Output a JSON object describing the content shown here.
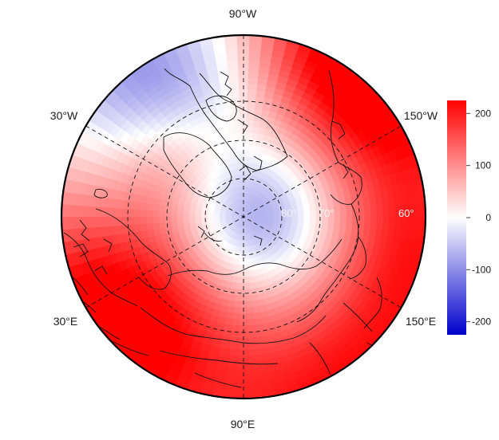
{
  "map": {
    "projection": "north-polar-stereographic",
    "longitude_labels": {
      "top": "90°W",
      "upper_left": "30°W",
      "upper_right": "150°W",
      "lower_left": "30°E",
      "lower_right": "150°E",
      "bottom": "90°E"
    },
    "latitude_labels": [
      "80°",
      "70°",
      "60°"
    ],
    "graticule": "dashed",
    "coastlines": true,
    "field_pattern": {
      "negative_centers": [
        "North Pole / Arctic Ocean (Siberian side)",
        "North Atlantic west of 30°W"
      ],
      "positive_centers": [
        "Alaska / Gulf of Alaska",
        "Eastern Europe / West Siberia",
        "Central Asia / East Asia"
      ]
    }
  },
  "colorbar": {
    "ticks": [
      "200",
      "100",
      "0",
      "-100",
      "-200"
    ],
    "tick_values": [
      200,
      100,
      0,
      -100,
      -200
    ],
    "min": -225,
    "max": 225,
    "colors": {
      "low": "#0000cc",
      "mid": "#ffffff",
      "high": "#ff0000"
    }
  }
}
